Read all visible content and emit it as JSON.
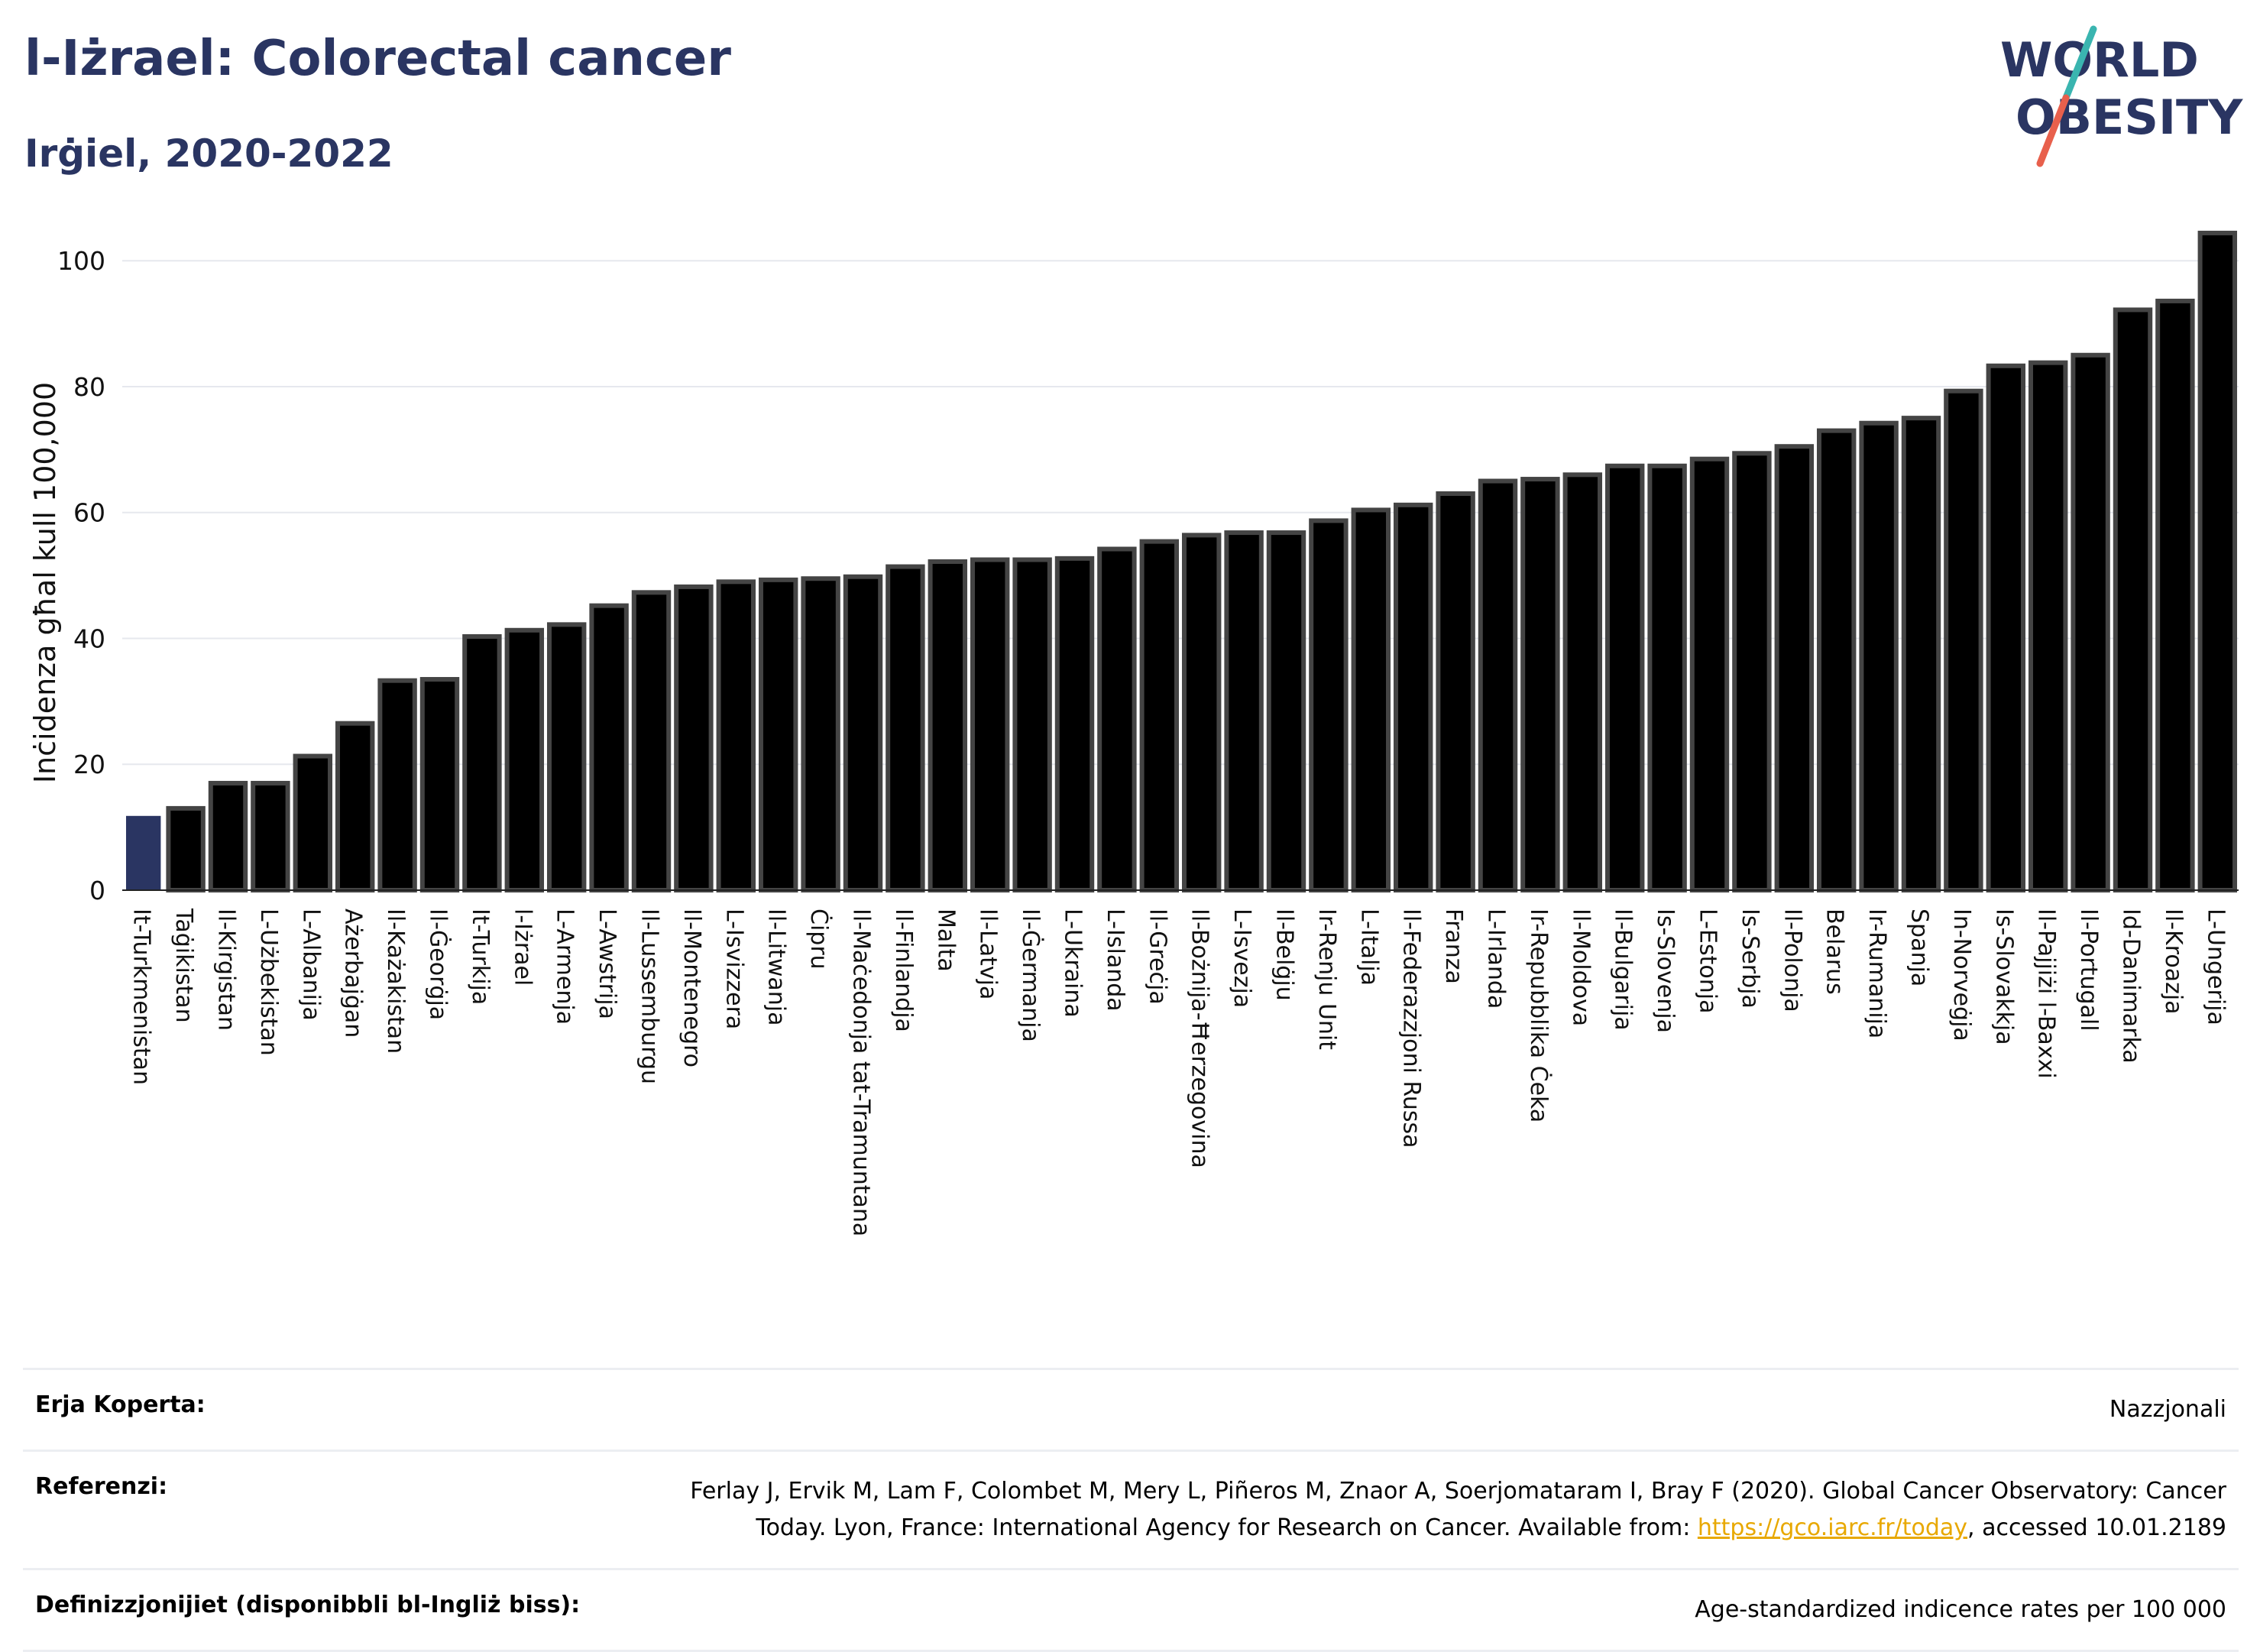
{
  "header": {
    "title": "l-Iżrael: Colorectal cancer",
    "subtitle": "Irġiel, 2020-2022"
  },
  "logo": {
    "line1": "WORLD",
    "line2": "OBESITY",
    "text_color": "#2a3562",
    "slash_color_top": "#3ab5b0",
    "slash_color_bottom": "#e8604c"
  },
  "chart_data": {
    "type": "bar",
    "ylabel": "Inċidenza għal kull 100,000",
    "ylim": [
      0,
      105
    ],
    "yticks": [
      0,
      20,
      40,
      60,
      80,
      100
    ],
    "grid": true,
    "highlight_color": "#2a3562",
    "bar_color": "#000000",
    "bar_outline_color": "#444444",
    "highlight_category": "It-Turkmenistan",
    "categories": [
      "It-Turkmenistan",
      "Taġikistan",
      "Il-Kirgistan",
      "L-Użbekistan",
      "L-Albanija",
      "Ażerbajġan",
      "Il-Każakistan",
      "Il-Ġeorġja",
      "It-Turkija",
      "l-Iżrael",
      "L-Armenja",
      "L-Awstrija",
      "Il-Lussemburgu",
      "Il-Montenegro",
      "L-Isvizzera",
      "Il-Litwanja",
      "Ċipru",
      "Il-Maċedonja tat-Tramuntana",
      "Il-Finlandja",
      "Malta",
      "Il-Latvja",
      "Il-Ġermanja",
      "L-Ukraina",
      "L-Islanda",
      "Il-Greċja",
      "Il-Bożnija-Ħerzegovina",
      "L-Isvezja",
      "Il-Belġju",
      "Ir-Renju Unit",
      "L-Italja",
      "Il-Federazzjoni Russa",
      "Franza",
      "L-Irlanda",
      "Ir-Repubblika Ċeka",
      "Il-Moldova",
      "Il-Bulgarija",
      "Is-Slovenja",
      "L-Estonja",
      "Is-Serbja",
      "Il-Polonja",
      "Belarus",
      "Ir-Rumanija",
      "Spanja",
      "In-Norveġja",
      "Is-Slovakkja",
      "Il-Pajjiżi l-Baxxi",
      "Il-Portugall",
      "Id-Danimarka",
      "Il-Kroazja",
      "L-Ungerija"
    ],
    "values": [
      11.8,
      13.0,
      17.0,
      17.0,
      21.3,
      26.5,
      33.3,
      33.5,
      40.3,
      41.3,
      42.2,
      45.2,
      47.3,
      48.2,
      49.0,
      49.3,
      49.5,
      49.8,
      51.4,
      52.2,
      52.5,
      52.5,
      52.7,
      54.2,
      55.4,
      56.4,
      56.8,
      56.8,
      58.7,
      60.4,
      61.2,
      63.0,
      65.0,
      65.3,
      66.0,
      67.4,
      67.4,
      68.5,
      69.4,
      70.5,
      73.0,
      74.2,
      75.0,
      79.3,
      83.3,
      83.8,
      85.0,
      92.2,
      93.6,
      104.4
    ]
  },
  "info": {
    "coverage_label": "Erja Koperta:",
    "coverage_value": "Nazzjonali",
    "reference_label": "Referenzi:",
    "reference_text": "Ferlay J, Ervik M, Lam F, Colombet M, Mery L, Piñeros M, Znaor A, Soerjomataram I, Bray F (2020). Global Cancer Observatory: Cancer Today. Lyon, France: International Agency for Research on Cancer. Available from: ",
    "reference_link": "https://gco.iarc.fr/today",
    "reference_suffix": ", accessed 10.01.2189",
    "definitions_label": "Definizzjonijiet (disponibbli bl-Ingliż biss):",
    "definitions_value": "Age-standardized indicence rates per 100 000"
  }
}
